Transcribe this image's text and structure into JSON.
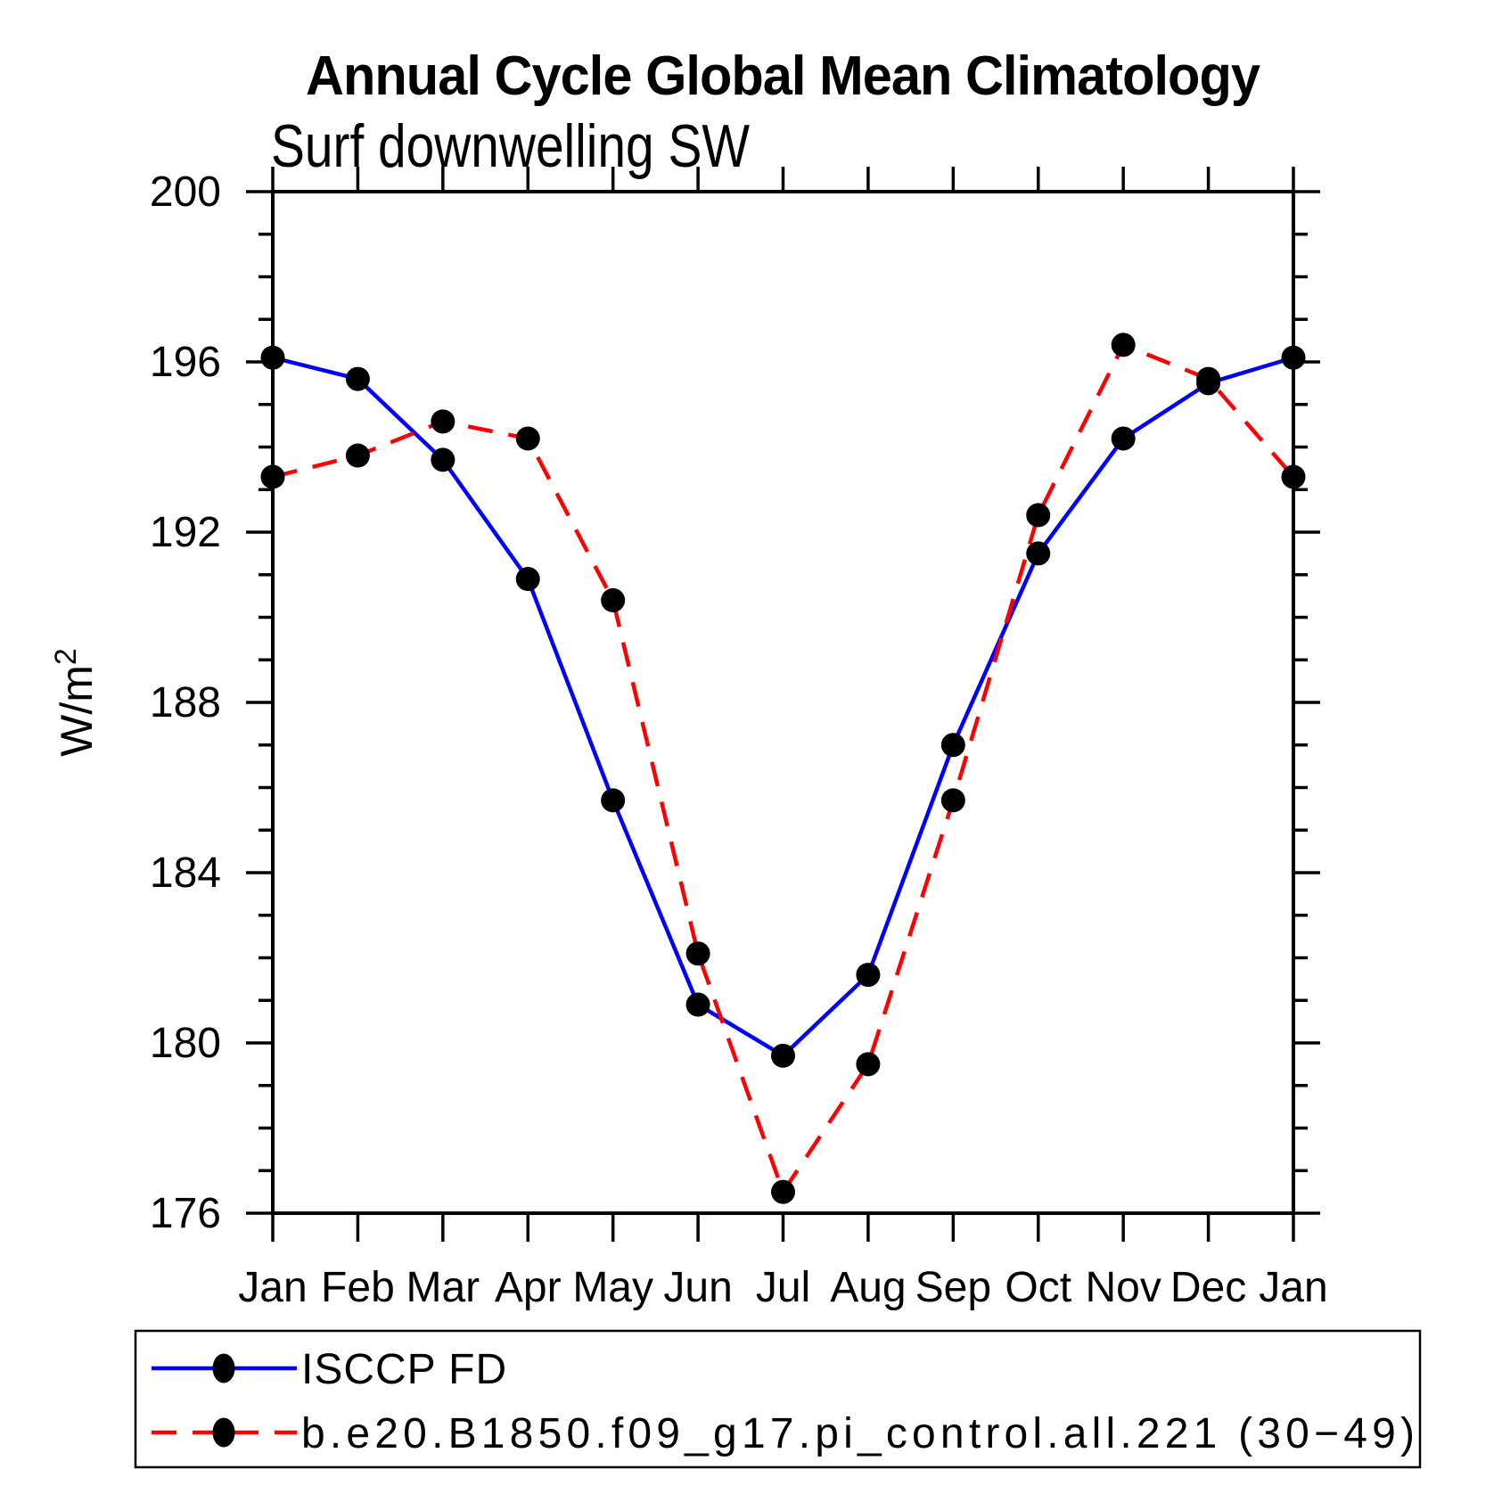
{
  "page": {
    "background_color": "#ffffff",
    "text_color": "#000000"
  },
  "chart_data": {
    "type": "line",
    "title": "Annual Cycle Global Mean Climatology",
    "subtitle": "Surf downwelling SW",
    "ylabel": "W/m²",
    "ylabel_parts": {
      "base": "W/m",
      "sup": "2"
    },
    "xlabel": "",
    "x_tick_labels": [
      "Jan",
      "Feb",
      "Mar",
      "Apr",
      "May",
      "Jun",
      "Jul",
      "Aug",
      "Sep",
      "Oct",
      "Nov",
      "Dec",
      "Jan"
    ],
    "y_tick_labels": [
      "176",
      "180",
      "184",
      "188",
      "192",
      "196",
      "200"
    ],
    "ylim": [
      176,
      200
    ],
    "y_major_step": 4,
    "y_minor_step": 1,
    "grid": false,
    "tick_direction": "out",
    "legend_position": "bottom-left-box",
    "axis_color": "#000000",
    "marker_color": "#000000",
    "series": [
      {
        "name": "ISCCP FD",
        "line_style": "solid",
        "line_color": "#0000ff",
        "marker": "filled-circle",
        "values": [
          196.1,
          195.6,
          193.7,
          190.9,
          185.7,
          180.9,
          179.7,
          181.6,
          187.0,
          191.5,
          194.2,
          195.5,
          196.1
        ]
      },
      {
        "name": "b.e20.B1850.f09_g17.pi_control.all.221 (30−49)",
        "line_style": "dashed",
        "line_color": "#ff0000",
        "marker": "filled-circle",
        "values": [
          193.3,
          193.8,
          194.6,
          194.2,
          190.4,
          182.1,
          176.5,
          179.5,
          185.7,
          192.4,
          196.4,
          195.6,
          193.3
        ]
      }
    ]
  }
}
